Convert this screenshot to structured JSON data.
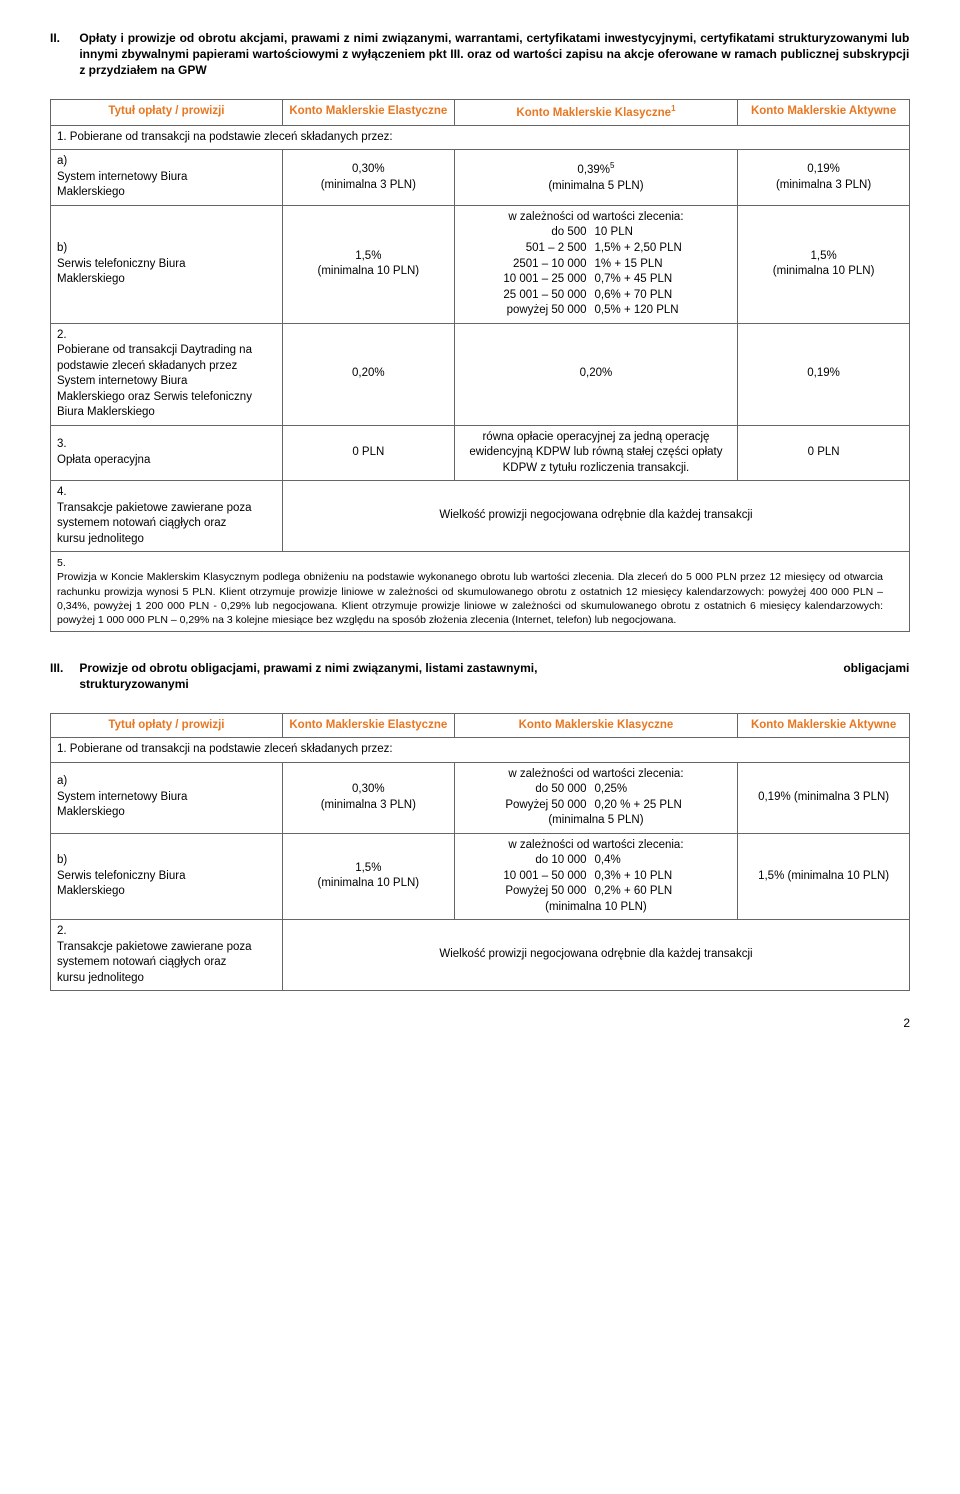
{
  "section2": {
    "roman": "II.",
    "heading": "Opłaty i prowizje od obrotu akcjami, prawami z nimi związanymi, warrantami, certyfikatami inwestycyjnymi, certyfikatami strukturyzowanymi lub innymi zbywalnymi papierami wartościowymi z wyłączeniem pkt III. oraz od wartości zapisu na akcje oferowane w ramach publicznej subskrypcji z przydziałem na GPW",
    "header_title": "Tytuł opłaty / prowizji",
    "col_e": "Konto Maklerskie Elastyczne",
    "col_k": "Konto Maklerskie Klasyczne",
    "col_k_sup": "1",
    "col_a": "Konto Maklerskie Aktywne",
    "row1_label": "1.   Pobierane od transakcji na podstawie zleceń składanych przez:",
    "row1a_idx": "a)",
    "row1a_label": "System internetowy Biura Maklerskiego",
    "row1a_e": "0,30%\n(minimalna 3 PLN)",
    "row1a_k": "0,39%",
    "row1a_k_sup": "5",
    "row1a_k_min": "(minimalna 5 PLN)",
    "row1a_a": "0,19%\n(minimalna 3 PLN)",
    "row1b_idx": "b)",
    "row1b_label": "Serwis telefoniczny Biura Maklerskiego",
    "row1b_e": "1,5%\n(minimalna 10 PLN)",
    "row1b_k_header": "w zależności od wartości zlecenia:",
    "row1b_k_tiers": [
      [
        "do 500",
        "10 PLN"
      ],
      [
        "501 – 2 500",
        "1,5% + 2,50 PLN"
      ],
      [
        "2501 – 10 000",
        "1% + 15 PLN"
      ],
      [
        "10 001 – 25 000",
        "0,7% + 45 PLN"
      ],
      [
        "25 001 – 50 000",
        "0,6% + 70 PLN"
      ],
      [
        "powyżej 50 000",
        "0,5% + 120 PLN"
      ]
    ],
    "row1b_a": "1,5%\n(minimalna 10 PLN)",
    "row2_idx": "2.",
    "row2_label": "Pobierane od transakcji Daytrading na podstawie zleceń składanych przez System internetowy Biura Maklerskiego oraz Serwis telefoniczny Biura Maklerskiego",
    "row2_e": "0,20%",
    "row2_k": "0,20%",
    "row2_a": "0,19%",
    "row3_idx": "3.",
    "row3_label": "Opłata operacyjna",
    "row3_e": "0 PLN",
    "row3_k": "równa opłacie operacyjnej za jedną operację ewidencyjną KDPW lub równą stałej części opłaty KDPW z tytułu rozliczenia transakcji.",
    "row3_a": "0 PLN",
    "row4_idx": "4.",
    "row4_label": "Transakcje pakietowe zawierane poza systemem notowań ciągłych oraz kursu jednolitego",
    "row4_span": "Wielkość prowizji negocjowana odrębnie dla każdej transakcji",
    "footnote_idx": "5.",
    "footnote": "Prowizja w Koncie Maklerskim Klasycznym podlega obniżeniu na podstawie wykonanego obrotu lub wartości zlecenia. Dla zleceń do 5 000 PLN przez 12 miesięcy od otwarcia rachunku prowizja wynosi 5 PLN. Klient otrzymuje prowizje liniowe w zależności od skumulowanego obrotu z ostatnich 12 miesięcy kalendarzowych: powyżej 400 000 PLN – 0,34%, powyżej 1 200 000 PLN  - 0,29% lub negocjowana. Klient otrzymuje prowizje liniowe w zależności od skumulowanego obrotu z ostatnich 6 miesięcy kalendarzowych: powyżej 1 000 000 PLN – 0,29% na 3 kolejne miesiące bez względu na sposób złożenia zlecenia (Internet, telefon) lub negocjowana."
  },
  "section3": {
    "roman": "III.",
    "heading_before_last": "Prowizje od obrotu obligacjami, prawami z nimi związanymi, listami zastawnymi,",
    "heading_last": "obligacjami",
    "heading_line2": "strukturyzowanymi",
    "header_title": "Tytuł opłaty / prowizji",
    "col_e": "Konto Maklerskie Elastyczne",
    "col_k": "Konto Maklerskie Klasyczne",
    "col_a": "Konto Maklerskie Aktywne",
    "row1_label": "1.   Pobierane od transakcji na podstawie zleceń składanych przez:",
    "row1a_idx": "a)",
    "row1a_label": "System internetowy Biura Maklerskiego",
    "row1a_e": "0,30%\n(minimalna 3 PLN)",
    "row1a_k_header": "w zależności od wartości zlecenia:",
    "row1a_k_tiers": [
      [
        "do 50 000",
        "0,25%"
      ],
      [
        "Powyżej 50 000",
        "0,20 % + 25 PLN"
      ]
    ],
    "row1a_k_min": "(minimalna 5 PLN)",
    "row1a_a": "0,19% (minimalna 3 PLN)",
    "row1b_idx": "b)",
    "row1b_label": "Serwis telefoniczny Biura Maklerskiego",
    "row1b_e": "1,5%\n(minimalna 10 PLN)",
    "row1b_k_header": "w zależności od wartości zlecenia:",
    "row1b_k_tiers": [
      [
        "do 10 000",
        "0,4%"
      ],
      [
        "10 001 – 50 000",
        "0,3% + 10 PLN"
      ],
      [
        "Powyżej 50 000",
        "0,2% + 60 PLN"
      ]
    ],
    "row1b_k_min": "(minimalna 10 PLN)",
    "row1b_a": "1,5% (minimalna 10 PLN)",
    "row2_idx": "2.",
    "row2_label": "Transakcje pakietowe zawierane poza systemem notowań ciągłych oraz kursu jednolitego",
    "row2_span": "Wielkość prowizji negocjowana odrębnie dla każdej transakcji"
  },
  "page_number": "2"
}
